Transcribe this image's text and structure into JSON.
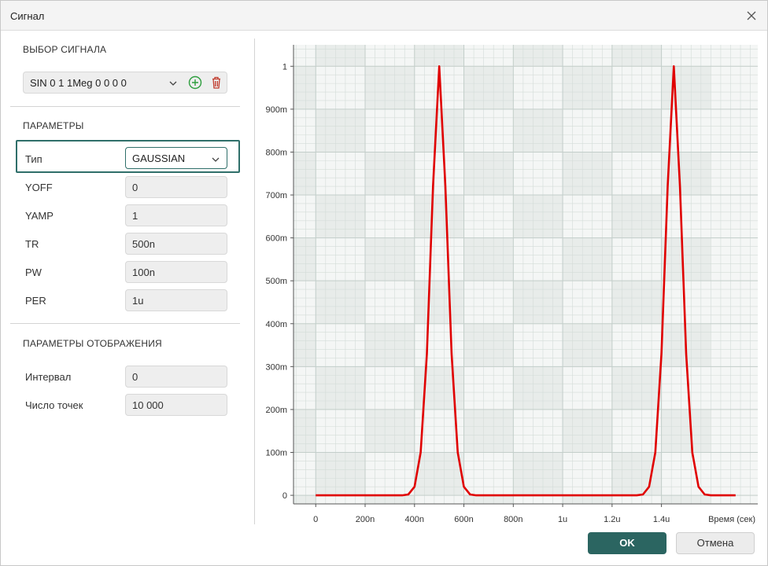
{
  "window": {
    "title": "Сигнал"
  },
  "signal_section": {
    "title": "ВЫБОР СИГНАЛА",
    "selected": "SIN 0 1 1Meg 0 0 0 0",
    "add_icon": "plus-circle-icon",
    "delete_icon": "trash-icon"
  },
  "params_section": {
    "title": "ПАРАМЕТРЫ",
    "type_label": "Тип",
    "type_value": "GAUSSIAN",
    "fields": [
      {
        "label": "YOFF",
        "value": "0"
      },
      {
        "label": "YAMP",
        "value": "1"
      },
      {
        "label": "TR",
        "value": "500n"
      },
      {
        "label": "PW",
        "value": "100n"
      },
      {
        "label": "PER",
        "value": "1u"
      }
    ]
  },
  "display_section": {
    "title": "ПАРАМЕТРЫ ОТОБРАЖЕНИЯ",
    "fields": [
      {
        "label": "Интервал",
        "value": "0"
      },
      {
        "label": "Число точек",
        "value": "10 000"
      }
    ]
  },
  "buttons": {
    "ok": "OK",
    "cancel": "Отмена"
  },
  "colors": {
    "accent": "#2b6561",
    "curve": "#e00000",
    "add": "#2e9e3e",
    "delete": "#c0392b"
  },
  "chart_data": {
    "type": "line",
    "xlabel": "Время (сек)",
    "ylabel": "",
    "xlim": [
      -9e-08,
      1.79e-06
    ],
    "ylim": [
      -0.02,
      1.05
    ],
    "x_ticks": [
      {
        "v": 0,
        "label": "0"
      },
      {
        "v": 2e-07,
        "label": "200n"
      },
      {
        "v": 4e-07,
        "label": "400n"
      },
      {
        "v": 6e-07,
        "label": "600n"
      },
      {
        "v": 8e-07,
        "label": "800n"
      },
      {
        "v": 1e-06,
        "label": "1u"
      },
      {
        "v": 1.2e-06,
        "label": "1.2u"
      },
      {
        "v": 1.4e-06,
        "label": "1.4u"
      }
    ],
    "y_ticks": [
      {
        "v": 0,
        "label": "0"
      },
      {
        "v": 0.1,
        "label": "100m"
      },
      {
        "v": 0.2,
        "label": "200m"
      },
      {
        "v": 0.3,
        "label": "300m"
      },
      {
        "v": 0.4,
        "label": "400m"
      },
      {
        "v": 0.5,
        "label": "500m"
      },
      {
        "v": 0.6,
        "label": "600m"
      },
      {
        "v": 0.7,
        "label": "700m"
      },
      {
        "v": 0.8,
        "label": "800m"
      },
      {
        "v": 0.9,
        "label": "900m"
      },
      {
        "v": 1,
        "label": "1"
      }
    ],
    "series": [
      {
        "x": [
          0,
          3.5e-07,
          3.75e-07,
          4e-07,
          4.25e-07,
          4.5e-07,
          4.75e-07,
          5e-07,
          5.25e-07,
          5.5e-07,
          5.75e-07,
          6e-07,
          6.25e-07,
          6.5e-07,
          1.3e-06,
          1.325e-06,
          1.35e-06,
          1.375e-06,
          1.4e-06,
          1.425e-06,
          1.45e-06,
          1.475e-06,
          1.5e-06,
          1.525e-06,
          1.55e-06,
          1.575e-06,
          1.6e-06,
          1.625e-06,
          1.65e-06,
          1.7e-06
        ],
        "y": [
          0,
          0,
          0.002,
          0.02,
          0.1,
          0.33,
          0.72,
          1,
          0.72,
          0.33,
          0.1,
          0.02,
          0.002,
          0,
          0,
          0.002,
          0.02,
          0.1,
          0.33,
          0.72,
          1,
          0.72,
          0.33,
          0.1,
          0.02,
          0.002,
          0,
          0,
          0,
          0
        ]
      }
    ]
  }
}
